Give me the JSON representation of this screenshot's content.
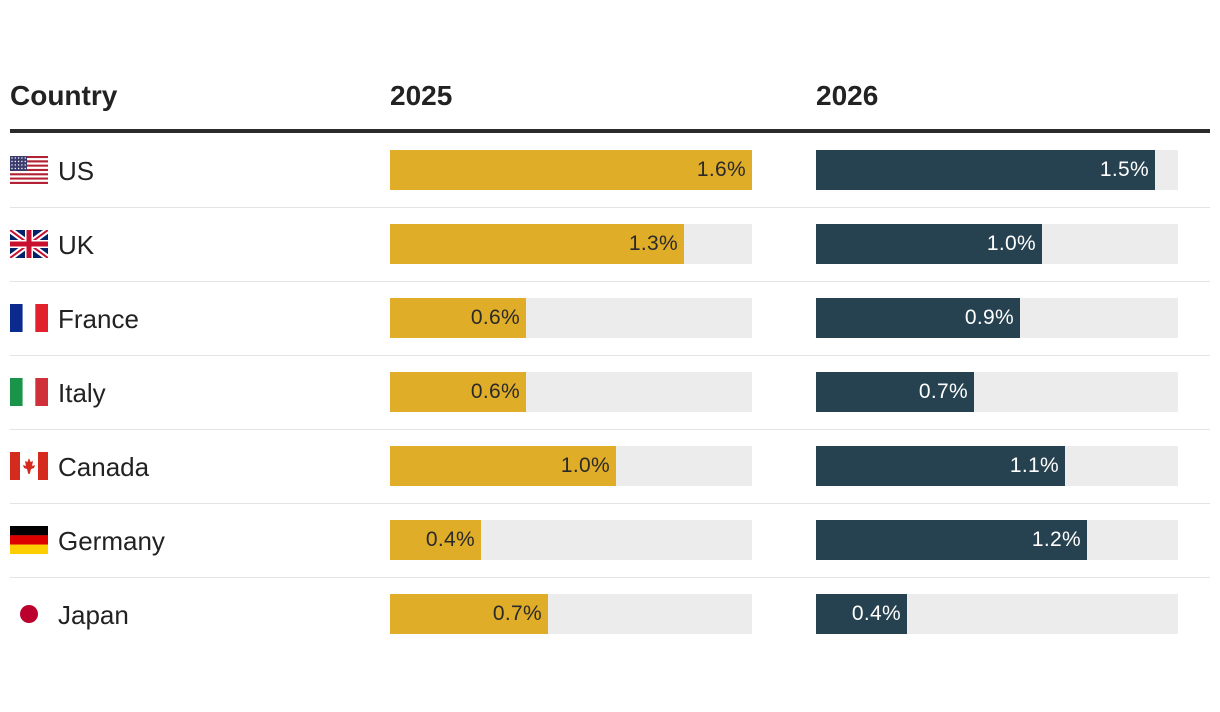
{
  "header": {
    "country": "Country",
    "year_a": "2025",
    "year_b": "2026"
  },
  "colors": {
    "series_2025": "#e0ad29",
    "series_2026": "#26414f",
    "track": "#ececec"
  },
  "rows": [
    {
      "country": "US",
      "flag": "us-flag-icon",
      "v2025_label": "1.6%",
      "v2026_label": "1.5%"
    },
    {
      "country": "UK",
      "flag": "uk-flag-icon",
      "v2025_label": "1.3%",
      "v2026_label": "1.0%"
    },
    {
      "country": "France",
      "flag": "france-flag-icon",
      "v2025_label": "0.6%",
      "v2026_label": "0.9%"
    },
    {
      "country": "Italy",
      "flag": "italy-flag-icon",
      "v2025_label": "0.6%",
      "v2026_label": "0.7%"
    },
    {
      "country": "Canada",
      "flag": "canada-flag-icon",
      "v2025_label": "1.0%",
      "v2026_label": "1.1%"
    },
    {
      "country": "Germany",
      "flag": "germany-flag-icon",
      "v2025_label": "0.4%",
      "v2026_label": "1.2%"
    },
    {
      "country": "Japan",
      "flag": "japan-flag-icon",
      "v2025_label": "0.7%",
      "v2026_label": "0.4%"
    }
  ],
  "chart_data": {
    "type": "bar",
    "title": "",
    "xlabel": "",
    "ylabel": "",
    "categories": [
      "US",
      "UK",
      "France",
      "Italy",
      "Canada",
      "Germany",
      "Japan"
    ],
    "series": [
      {
        "name": "2025",
        "values": [
          1.6,
          1.3,
          0.6,
          0.6,
          1.0,
          0.4,
          0.7
        ]
      },
      {
        "name": "2026",
        "values": [
          1.5,
          1.0,
          0.9,
          0.7,
          1.1,
          1.2,
          0.4
        ]
      }
    ],
    "xlim": [
      0,
      1.6
    ],
    "unit": "%"
  }
}
